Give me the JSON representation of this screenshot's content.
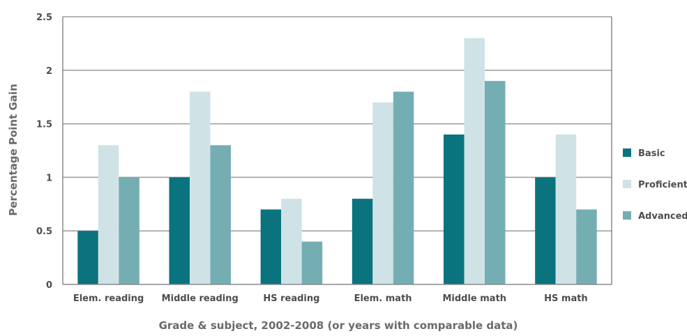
{
  "chart_data": {
    "type": "bar",
    "title": "",
    "xlabel": "Grade & subject, 2002-2008 (or years with comparable data)",
    "ylabel": "Percentage Point Gain",
    "ylim": [
      0,
      2.5
    ],
    "yticks": [
      "0",
      "0.5",
      "1",
      "1.5",
      "2",
      "2.5"
    ],
    "categories": [
      "Elem. reading",
      "Middle reading",
      "HS reading",
      "Elem. math",
      "Middle math",
      "HS math"
    ],
    "series": [
      {
        "name": "Basic",
        "color": "#0a737d",
        "values": [
          0.5,
          1.0,
          0.7,
          0.8,
          1.4,
          1.0
        ]
      },
      {
        "name": "Proficient",
        "color": "#cfe3e6",
        "values": [
          1.3,
          1.8,
          0.8,
          1.7,
          2.3,
          1.4
        ]
      },
      {
        "name": "Advanced",
        "color": "#74aeb3",
        "values": [
          1.0,
          1.3,
          0.4,
          1.8,
          1.9,
          0.7
        ]
      }
    ],
    "grid": true,
    "legend_position": "right"
  }
}
